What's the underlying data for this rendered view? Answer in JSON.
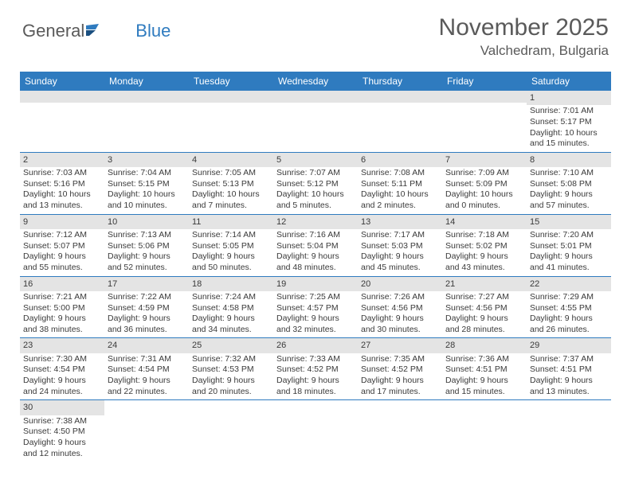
{
  "logo": {
    "text1": "General",
    "text2": "Blue"
  },
  "title": {
    "month": "November 2025",
    "location": "Valchedram, Bulgaria"
  },
  "colors": {
    "header_bg": "#2f7bbf",
    "header_text": "#ffffff",
    "daynum_bg": "#e4e4e4",
    "body_text": "#3a3a3a",
    "logo_gray": "#5a5a5a",
    "logo_blue": "#2f7bbf"
  },
  "weekdays": [
    "Sunday",
    "Monday",
    "Tuesday",
    "Wednesday",
    "Thursday",
    "Friday",
    "Saturday"
  ],
  "weeks": [
    [
      {
        "n": "",
        "sr": "",
        "ss": "",
        "dl": ""
      },
      {
        "n": "",
        "sr": "",
        "ss": "",
        "dl": ""
      },
      {
        "n": "",
        "sr": "",
        "ss": "",
        "dl": ""
      },
      {
        "n": "",
        "sr": "",
        "ss": "",
        "dl": ""
      },
      {
        "n": "",
        "sr": "",
        "ss": "",
        "dl": ""
      },
      {
        "n": "",
        "sr": "",
        "ss": "",
        "dl": ""
      },
      {
        "n": "1",
        "sr": "Sunrise: 7:01 AM",
        "ss": "Sunset: 5:17 PM",
        "dl": "Daylight: 10 hours and 15 minutes."
      }
    ],
    [
      {
        "n": "2",
        "sr": "Sunrise: 7:03 AM",
        "ss": "Sunset: 5:16 PM",
        "dl": "Daylight: 10 hours and 13 minutes."
      },
      {
        "n": "3",
        "sr": "Sunrise: 7:04 AM",
        "ss": "Sunset: 5:15 PM",
        "dl": "Daylight: 10 hours and 10 minutes."
      },
      {
        "n": "4",
        "sr": "Sunrise: 7:05 AM",
        "ss": "Sunset: 5:13 PM",
        "dl": "Daylight: 10 hours and 7 minutes."
      },
      {
        "n": "5",
        "sr": "Sunrise: 7:07 AM",
        "ss": "Sunset: 5:12 PM",
        "dl": "Daylight: 10 hours and 5 minutes."
      },
      {
        "n": "6",
        "sr": "Sunrise: 7:08 AM",
        "ss": "Sunset: 5:11 PM",
        "dl": "Daylight: 10 hours and 2 minutes."
      },
      {
        "n": "7",
        "sr": "Sunrise: 7:09 AM",
        "ss": "Sunset: 5:09 PM",
        "dl": "Daylight: 10 hours and 0 minutes."
      },
      {
        "n": "8",
        "sr": "Sunrise: 7:10 AM",
        "ss": "Sunset: 5:08 PM",
        "dl": "Daylight: 9 hours and 57 minutes."
      }
    ],
    [
      {
        "n": "9",
        "sr": "Sunrise: 7:12 AM",
        "ss": "Sunset: 5:07 PM",
        "dl": "Daylight: 9 hours and 55 minutes."
      },
      {
        "n": "10",
        "sr": "Sunrise: 7:13 AM",
        "ss": "Sunset: 5:06 PM",
        "dl": "Daylight: 9 hours and 52 minutes."
      },
      {
        "n": "11",
        "sr": "Sunrise: 7:14 AM",
        "ss": "Sunset: 5:05 PM",
        "dl": "Daylight: 9 hours and 50 minutes."
      },
      {
        "n": "12",
        "sr": "Sunrise: 7:16 AM",
        "ss": "Sunset: 5:04 PM",
        "dl": "Daylight: 9 hours and 48 minutes."
      },
      {
        "n": "13",
        "sr": "Sunrise: 7:17 AM",
        "ss": "Sunset: 5:03 PM",
        "dl": "Daylight: 9 hours and 45 minutes."
      },
      {
        "n": "14",
        "sr": "Sunrise: 7:18 AM",
        "ss": "Sunset: 5:02 PM",
        "dl": "Daylight: 9 hours and 43 minutes."
      },
      {
        "n": "15",
        "sr": "Sunrise: 7:20 AM",
        "ss": "Sunset: 5:01 PM",
        "dl": "Daylight: 9 hours and 41 minutes."
      }
    ],
    [
      {
        "n": "16",
        "sr": "Sunrise: 7:21 AM",
        "ss": "Sunset: 5:00 PM",
        "dl": "Daylight: 9 hours and 38 minutes."
      },
      {
        "n": "17",
        "sr": "Sunrise: 7:22 AM",
        "ss": "Sunset: 4:59 PM",
        "dl": "Daylight: 9 hours and 36 minutes."
      },
      {
        "n": "18",
        "sr": "Sunrise: 7:24 AM",
        "ss": "Sunset: 4:58 PM",
        "dl": "Daylight: 9 hours and 34 minutes."
      },
      {
        "n": "19",
        "sr": "Sunrise: 7:25 AM",
        "ss": "Sunset: 4:57 PM",
        "dl": "Daylight: 9 hours and 32 minutes."
      },
      {
        "n": "20",
        "sr": "Sunrise: 7:26 AM",
        "ss": "Sunset: 4:56 PM",
        "dl": "Daylight: 9 hours and 30 minutes."
      },
      {
        "n": "21",
        "sr": "Sunrise: 7:27 AM",
        "ss": "Sunset: 4:56 PM",
        "dl": "Daylight: 9 hours and 28 minutes."
      },
      {
        "n": "22",
        "sr": "Sunrise: 7:29 AM",
        "ss": "Sunset: 4:55 PM",
        "dl": "Daylight: 9 hours and 26 minutes."
      }
    ],
    [
      {
        "n": "23",
        "sr": "Sunrise: 7:30 AM",
        "ss": "Sunset: 4:54 PM",
        "dl": "Daylight: 9 hours and 24 minutes."
      },
      {
        "n": "24",
        "sr": "Sunrise: 7:31 AM",
        "ss": "Sunset: 4:54 PM",
        "dl": "Daylight: 9 hours and 22 minutes."
      },
      {
        "n": "25",
        "sr": "Sunrise: 7:32 AM",
        "ss": "Sunset: 4:53 PM",
        "dl": "Daylight: 9 hours and 20 minutes."
      },
      {
        "n": "26",
        "sr": "Sunrise: 7:33 AM",
        "ss": "Sunset: 4:52 PM",
        "dl": "Daylight: 9 hours and 18 minutes."
      },
      {
        "n": "27",
        "sr": "Sunrise: 7:35 AM",
        "ss": "Sunset: 4:52 PM",
        "dl": "Daylight: 9 hours and 17 minutes."
      },
      {
        "n": "28",
        "sr": "Sunrise: 7:36 AM",
        "ss": "Sunset: 4:51 PM",
        "dl": "Daylight: 9 hours and 15 minutes."
      },
      {
        "n": "29",
        "sr": "Sunrise: 7:37 AM",
        "ss": "Sunset: 4:51 PM",
        "dl": "Daylight: 9 hours and 13 minutes."
      }
    ],
    [
      {
        "n": "30",
        "sr": "Sunrise: 7:38 AM",
        "ss": "Sunset: 4:50 PM",
        "dl": "Daylight: 9 hours and 12 minutes."
      },
      {
        "n": "",
        "sr": "",
        "ss": "",
        "dl": ""
      },
      {
        "n": "",
        "sr": "",
        "ss": "",
        "dl": ""
      },
      {
        "n": "",
        "sr": "",
        "ss": "",
        "dl": ""
      },
      {
        "n": "",
        "sr": "",
        "ss": "",
        "dl": ""
      },
      {
        "n": "",
        "sr": "",
        "ss": "",
        "dl": ""
      },
      {
        "n": "",
        "sr": "",
        "ss": "",
        "dl": ""
      }
    ]
  ]
}
